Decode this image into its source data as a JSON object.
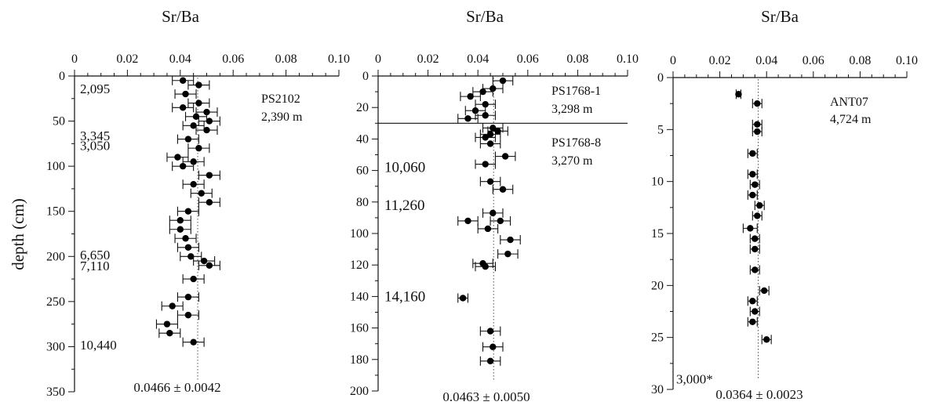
{
  "figure": {
    "ylabel": "depth (cm)"
  },
  "chart_data": [
    {
      "type": "scatter",
      "xlabel": "Sr/Ba",
      "xlim": [
        0,
        0.1
      ],
      "xticks": [
        "0",
        "0.02",
        "0.04",
        "0.06",
        "0.08",
        "0.10"
      ],
      "ylim": [
        0,
        350
      ],
      "yticks": [
        "0",
        "50",
        "100",
        "150",
        "200",
        "250",
        "300",
        "350"
      ],
      "site_labels": [
        "PS2102",
        "2,390 m"
      ],
      "mean": 0.0466,
      "mean_text": "0.0466 ± 0.0042",
      "age_labels": [
        {
          "text": "2,095",
          "depth": 14
        },
        {
          "text": "3,345",
          "depth": 66
        },
        {
          "text": "3,050",
          "depth": 77
        },
        {
          "text": "6,650",
          "depth": 198
        },
        {
          "text": "7,110",
          "depth": 210
        },
        {
          "text": "10,440",
          "depth": 298
        }
      ],
      "points": [
        {
          "depth": 5,
          "x": 0.041,
          "err": 0.004
        },
        {
          "depth": 10,
          "x": 0.047,
          "err": 0.004
        },
        {
          "depth": 20,
          "x": 0.042,
          "err": 0.004
        },
        {
          "depth": 30,
          "x": 0.047,
          "err": 0.004
        },
        {
          "depth": 35,
          "x": 0.041,
          "err": 0.004
        },
        {
          "depth": 40,
          "x": 0.05,
          "err": 0.004
        },
        {
          "depth": 45,
          "x": 0.046,
          "err": 0.004
        },
        {
          "depth": 50,
          "x": 0.051,
          "err": 0.004
        },
        {
          "depth": 55,
          "x": 0.045,
          "err": 0.004
        },
        {
          "depth": 60,
          "x": 0.05,
          "err": 0.004
        },
        {
          "depth": 70,
          "x": 0.043,
          "err": 0.004
        },
        {
          "depth": 80,
          "x": 0.047,
          "err": 0.004
        },
        {
          "depth": 90,
          "x": 0.039,
          "err": 0.004
        },
        {
          "depth": 95,
          "x": 0.045,
          "err": 0.004
        },
        {
          "depth": 100,
          "x": 0.041,
          "err": 0.004
        },
        {
          "depth": 110,
          "x": 0.051,
          "err": 0.004
        },
        {
          "depth": 120,
          "x": 0.045,
          "err": 0.004
        },
        {
          "depth": 130,
          "x": 0.048,
          "err": 0.004
        },
        {
          "depth": 140,
          "x": 0.051,
          "err": 0.004
        },
        {
          "depth": 150,
          "x": 0.043,
          "err": 0.004
        },
        {
          "depth": 160,
          "x": 0.04,
          "err": 0.004
        },
        {
          "depth": 170,
          "x": 0.04,
          "err": 0.004
        },
        {
          "depth": 180,
          "x": 0.042,
          "err": 0.004
        },
        {
          "depth": 190,
          "x": 0.043,
          "err": 0.004
        },
        {
          "depth": 200,
          "x": 0.044,
          "err": 0.004
        },
        {
          "depth": 205,
          "x": 0.049,
          "err": 0.004
        },
        {
          "depth": 210,
          "x": 0.051,
          "err": 0.004
        },
        {
          "depth": 225,
          "x": 0.045,
          "err": 0.004
        },
        {
          "depth": 245,
          "x": 0.043,
          "err": 0.004
        },
        {
          "depth": 255,
          "x": 0.037,
          "err": 0.004
        },
        {
          "depth": 265,
          "x": 0.043,
          "err": 0.004
        },
        {
          "depth": 275,
          "x": 0.035,
          "err": 0.004
        },
        {
          "depth": 285,
          "x": 0.036,
          "err": 0.004
        },
        {
          "depth": 295,
          "x": 0.045,
          "err": 0.004
        }
      ]
    },
    {
      "type": "scatter",
      "xlabel": "Sr/Ba",
      "xlim": [
        0,
        0.1
      ],
      "xticks": [
        "0",
        "0.02",
        "0.04",
        "0.06",
        "0.08",
        "0.10"
      ],
      "ylim": [
        0,
        200
      ],
      "yticks": [
        "0",
        "20",
        "40",
        "60",
        "80",
        "100",
        "120",
        "140",
        "160",
        "180",
        "200"
      ],
      "site_labels": [
        "PS1768-1",
        "3,298 m",
        "PS1768-8",
        "3,270 m"
      ],
      "boundary_depth": 30,
      "mean": 0.0463,
      "mean_text": "0.0463 ± 0.0050",
      "age_labels": [
        {
          "text": "10,060",
          "depth": 58
        },
        {
          "text": "11,260",
          "depth": 82
        },
        {
          "text": "14,160",
          "depth": 140
        }
      ],
      "points": [
        {
          "depth": 3,
          "x": 0.05,
          "err": 0.004
        },
        {
          "depth": 8,
          "x": 0.046,
          "err": 0.004
        },
        {
          "depth": 10,
          "x": 0.042,
          "err": 0.004
        },
        {
          "depth": 13,
          "x": 0.037,
          "err": 0.004
        },
        {
          "depth": 18,
          "x": 0.043,
          "err": 0.004
        },
        {
          "depth": 22,
          "x": 0.039,
          "err": 0.004
        },
        {
          "depth": 25,
          "x": 0.043,
          "err": 0.004
        },
        {
          "depth": 27,
          "x": 0.036,
          "err": 0.004
        },
        {
          "depth": 33,
          "x": 0.046,
          "err": 0.004
        },
        {
          "depth": 35,
          "x": 0.048,
          "err": 0.004
        },
        {
          "depth": 37,
          "x": 0.045,
          "err": 0.004
        },
        {
          "depth": 39,
          "x": 0.043,
          "err": 0.004
        },
        {
          "depth": 43,
          "x": 0.045,
          "err": 0.004
        },
        {
          "depth": 51,
          "x": 0.051,
          "err": 0.004
        },
        {
          "depth": 56,
          "x": 0.043,
          "err": 0.004
        },
        {
          "depth": 67,
          "x": 0.045,
          "err": 0.004
        },
        {
          "depth": 72,
          "x": 0.05,
          "err": 0.004
        },
        {
          "depth": 87,
          "x": 0.046,
          "err": 0.004
        },
        {
          "depth": 92,
          "x": 0.036,
          "err": 0.004
        },
        {
          "depth": 92,
          "x": 0.049,
          "err": 0.004
        },
        {
          "depth": 97,
          "x": 0.044,
          "err": 0.004
        },
        {
          "depth": 104,
          "x": 0.053,
          "err": 0.004
        },
        {
          "depth": 113,
          "x": 0.052,
          "err": 0.004
        },
        {
          "depth": 119,
          "x": 0.042,
          "err": 0.004
        },
        {
          "depth": 121,
          "x": 0.043,
          "err": 0.004
        },
        {
          "depth": 141,
          "x": 0.034,
          "err": 0.002
        },
        {
          "depth": 162,
          "x": 0.045,
          "err": 0.004
        },
        {
          "depth": 172,
          "x": 0.046,
          "err": 0.004
        },
        {
          "depth": 181,
          "x": 0.045,
          "err": 0.004
        }
      ]
    },
    {
      "type": "scatter",
      "xlabel": "Sr/Ba",
      "xlim": [
        0,
        0.1
      ],
      "xticks": [
        "0",
        "0.02",
        "0.04",
        "0.06",
        "0.08",
        "0.10"
      ],
      "ylim": [
        0,
        30
      ],
      "yticks": [
        "0",
        "5",
        "10",
        "15",
        "20",
        "25",
        "30"
      ],
      "site_labels": [
        "ANT07",
        "4,724 m"
      ],
      "mean": 0.0364,
      "mean_text": "0.0364 ± 0.0023",
      "age_labels": [
        {
          "text": "3,000*",
          "depth": 29
        }
      ],
      "points": [
        {
          "depth": 1.6,
          "x": 0.028,
          "err": 0.001
        },
        {
          "depth": 2.5,
          "x": 0.036,
          "err": 0.002
        },
        {
          "depth": 4.5,
          "x": 0.036,
          "err": 0.002
        },
        {
          "depth": 5.2,
          "x": 0.036,
          "err": 0.002
        },
        {
          "depth": 7.3,
          "x": 0.034,
          "err": 0.002
        },
        {
          "depth": 9.3,
          "x": 0.034,
          "err": 0.002
        },
        {
          "depth": 10.3,
          "x": 0.035,
          "err": 0.002
        },
        {
          "depth": 11.3,
          "x": 0.034,
          "err": 0.002
        },
        {
          "depth": 12.3,
          "x": 0.037,
          "err": 0.002
        },
        {
          "depth": 13.3,
          "x": 0.036,
          "err": 0.002
        },
        {
          "depth": 14.5,
          "x": 0.033,
          "err": 0.003
        },
        {
          "depth": 15.5,
          "x": 0.035,
          "err": 0.002
        },
        {
          "depth": 16.5,
          "x": 0.035,
          "err": 0.002
        },
        {
          "depth": 18.5,
          "x": 0.035,
          "err": 0.002
        },
        {
          "depth": 20.5,
          "x": 0.039,
          "err": 0.002
        },
        {
          "depth": 21.5,
          "x": 0.034,
          "err": 0.002
        },
        {
          "depth": 22.5,
          "x": 0.035,
          "err": 0.002
        },
        {
          "depth": 23.5,
          "x": 0.034,
          "err": 0.002
        },
        {
          "depth": 25.2,
          "x": 0.04,
          "err": 0.002
        }
      ]
    }
  ]
}
